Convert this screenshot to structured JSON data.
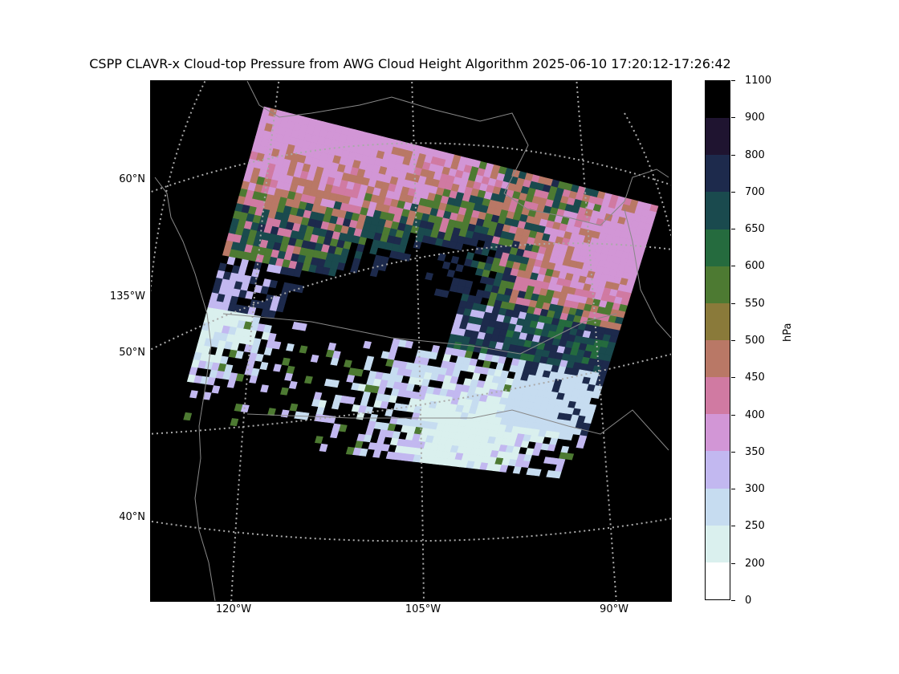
{
  "title": "CSPP CLAVR-x Cloud-top Pressure from AWG Cloud Height Algorithm 2025-06-10 17:20:12-17:26:42",
  "map": {
    "background": "#000000",
    "coastline_color": "#888888",
    "graticule_color": "#aaaaaa",
    "lat_labels": [
      {
        "text": "60°N",
        "lat": 60
      },
      {
        "text": "50°N",
        "lat": 50
      },
      {
        "text": "40°N",
        "lat": 40
      }
    ],
    "lon_side_label": {
      "text": "135°W",
      "lon": -135
    },
    "lon_labels": [
      {
        "text": "120°W",
        "lon": -120
      },
      {
        "text": "105°W",
        "lon": -105
      },
      {
        "text": "90°W",
        "lon": -90
      }
    ]
  },
  "colorbar": {
    "unit": "hPa",
    "ticks": [
      "1100",
      "900",
      "800",
      "700",
      "650",
      "600",
      "550",
      "500",
      "450",
      "400",
      "350",
      "300",
      "250",
      "200",
      "0"
    ],
    "colors_top_to_bottom": [
      "#000000",
      "#1f1430",
      "#1d2a4c",
      "#1a4a4e",
      "#256b3e",
      "#4d7a32",
      "#8a7a3a",
      "#b97866",
      "#d07aa2",
      "#d296d6",
      "#c2b8f0",
      "#c6dcf0",
      "#daf0ee",
      "#ffffff"
    ]
  }
}
